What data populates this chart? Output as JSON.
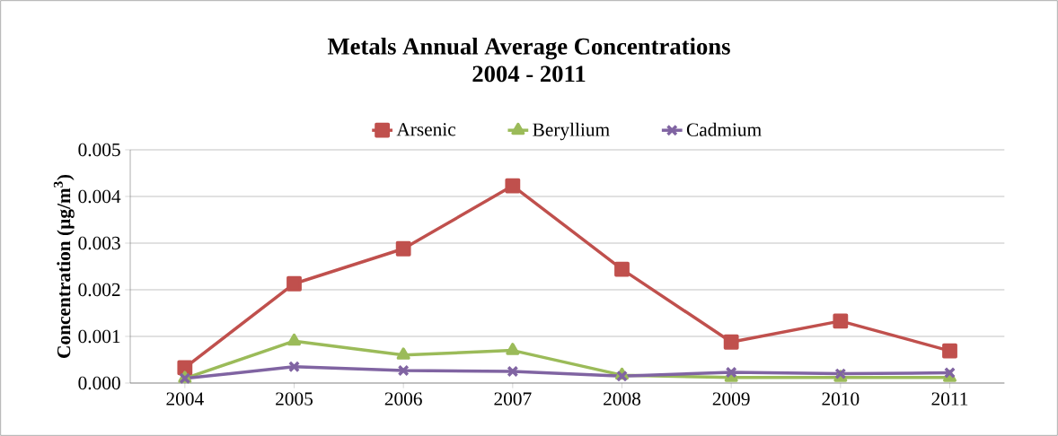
{
  "chart_data": {
    "type": "line",
    "title": "Metals Annual Average Concentrations",
    "subtitle": "2004 - 2011",
    "ylabel": "Concentration (µg/m$^{3}$)",
    "categories": [
      "2004",
      "2005",
      "2006",
      "2007",
      "2008",
      "2009",
      "2010",
      "2011"
    ],
    "series": [
      {
        "name": "Arsenic",
        "color": "#c0504d",
        "marker": "square",
        "values": [
          0.00033,
          0.00213,
          0.00288,
          0.00423,
          0.00244,
          0.00088,
          0.00133,
          0.00069
        ]
      },
      {
        "name": "Beryllium",
        "color": "#9bbb59",
        "marker": "triangle",
        "values": [
          0.0001,
          0.0009,
          0.0006,
          0.0007,
          0.00017,
          0.00012,
          0.00012,
          0.00012
        ]
      },
      {
        "name": "Cadmium",
        "color": "#8064a2",
        "marker": "cross",
        "values": [
          0.0001,
          0.00035,
          0.00027,
          0.00025,
          0.00015,
          0.00023,
          0.0002,
          0.00022
        ]
      }
    ],
    "ylim": [
      0,
      0.005
    ],
    "yticks": [
      {
        "value": 0,
        "label": "0.000"
      },
      {
        "value": 0.001,
        "label": "0.001"
      },
      {
        "value": 0.002,
        "label": "0.002"
      },
      {
        "value": 0.003,
        "label": "0.003"
      },
      {
        "value": 0.004,
        "label": "0.004"
      },
      {
        "value": 0.005,
        "label": "0.005"
      }
    ],
    "grid": "y",
    "legend": "top",
    "line_style": "solid"
  }
}
